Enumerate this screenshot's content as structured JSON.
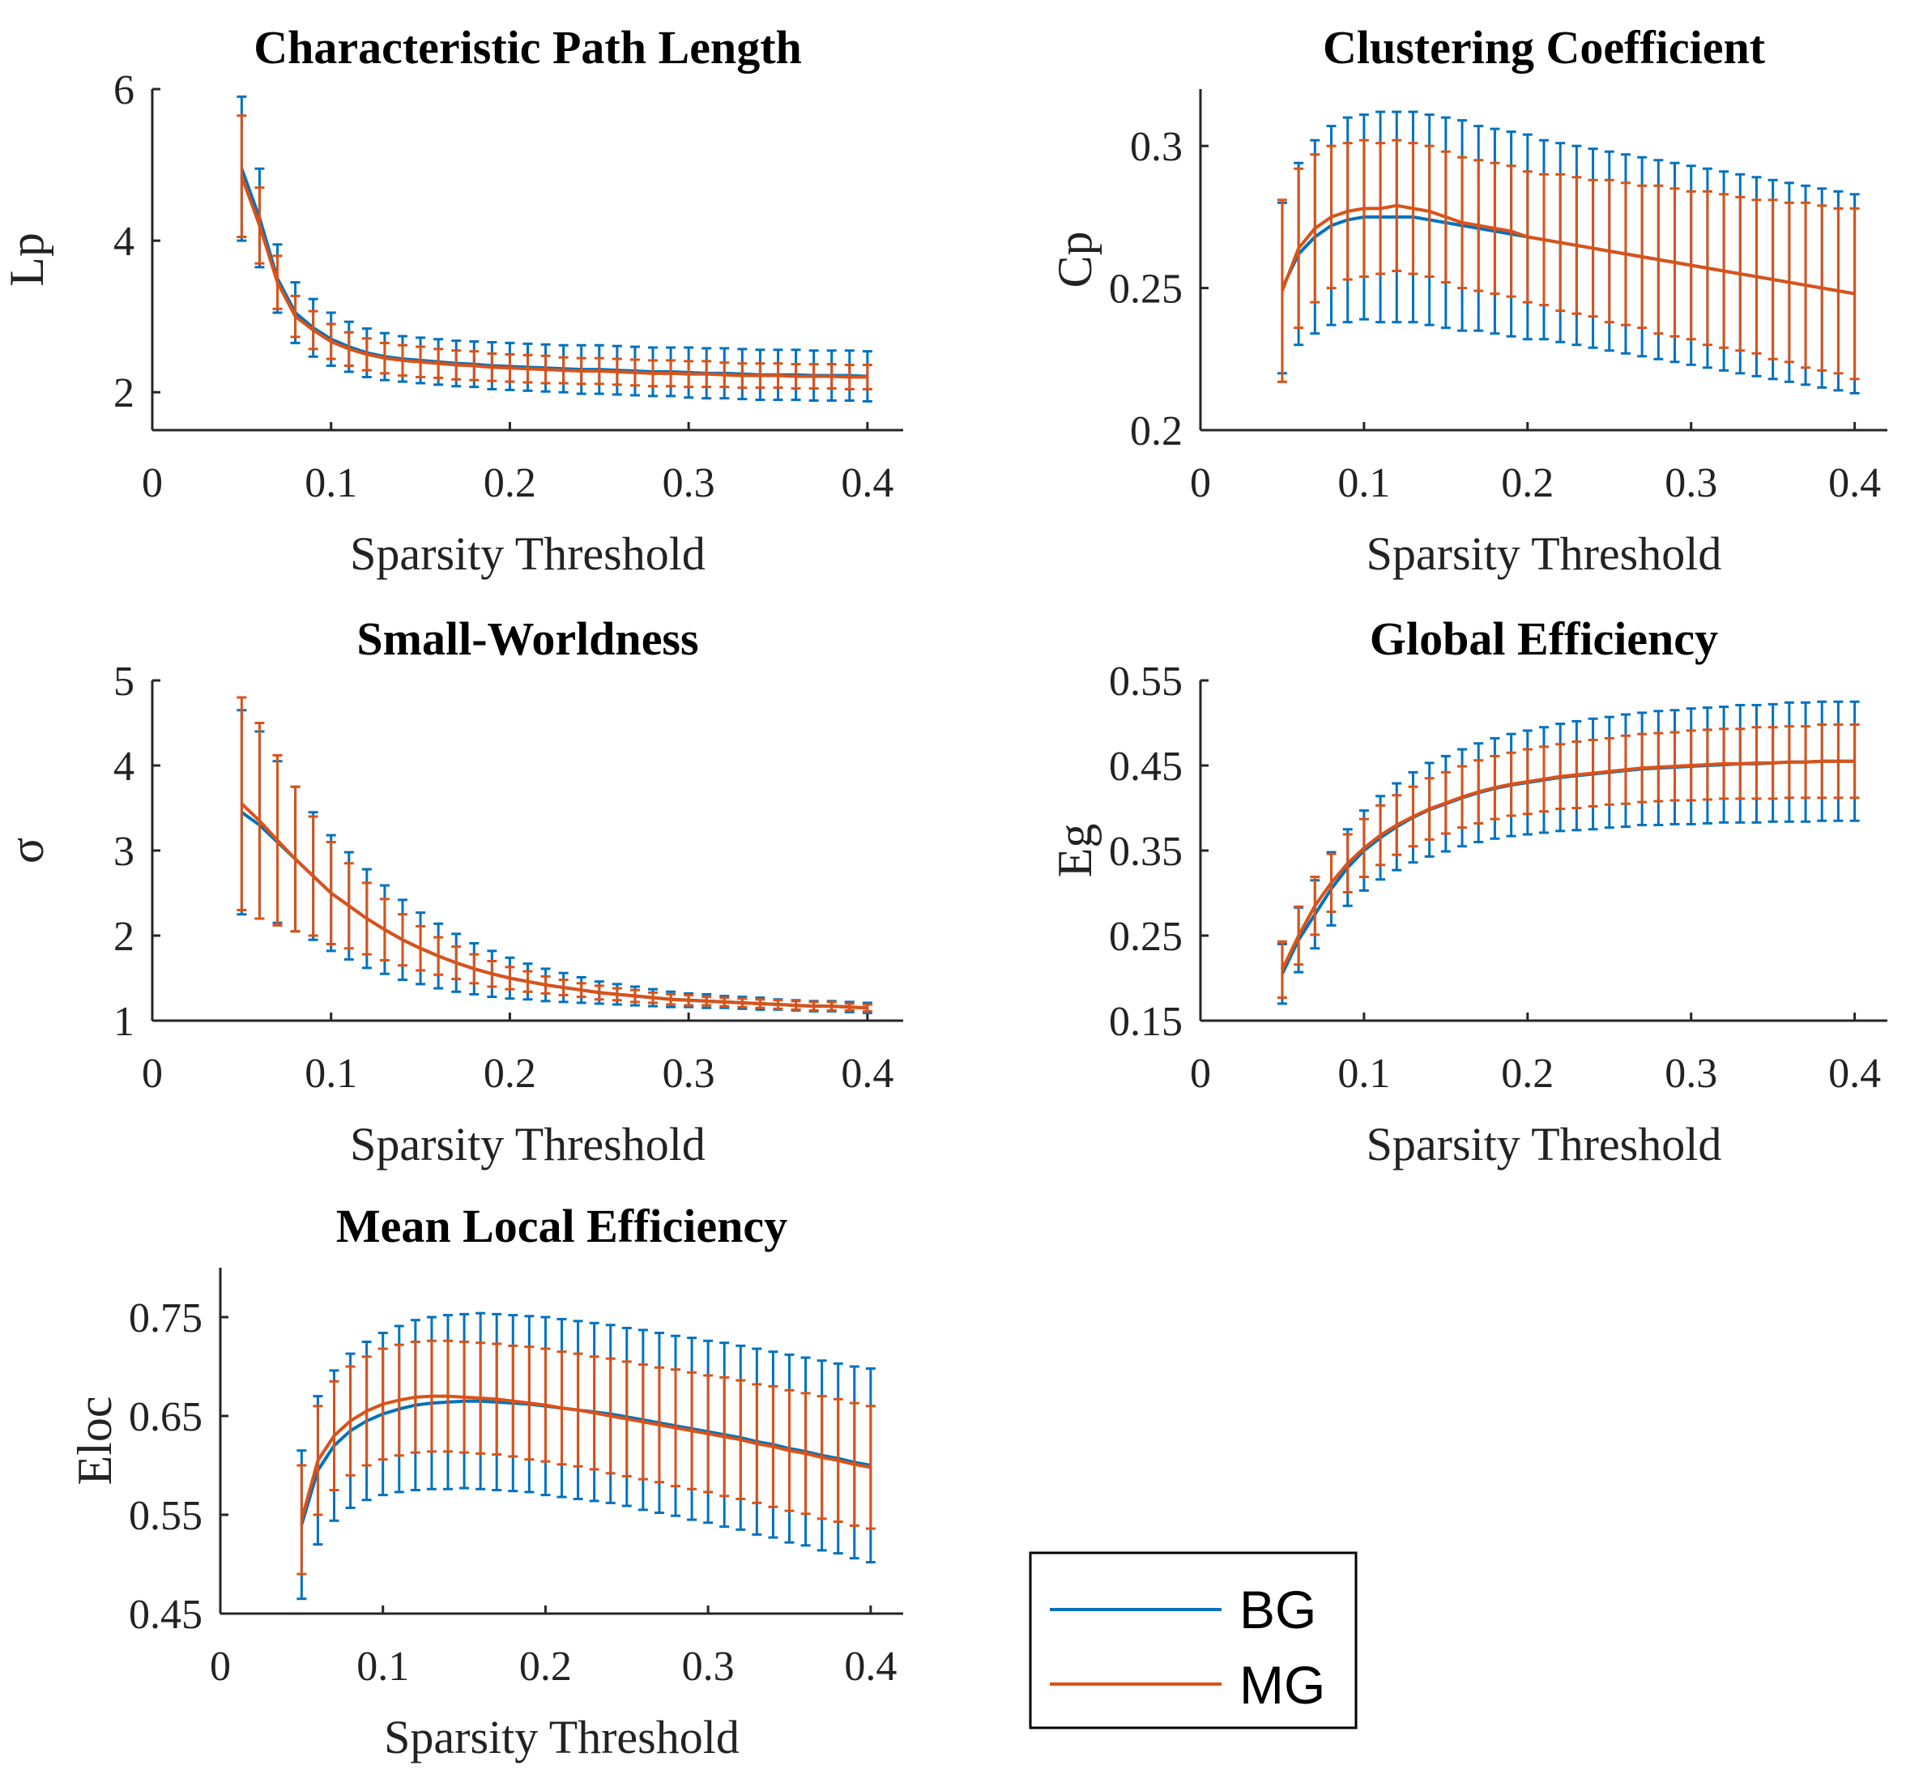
{
  "colors": {
    "BG": "#0072BD",
    "MG": "#D95319",
    "axis": "#262626"
  },
  "legend": {
    "placement": "bottom-right",
    "entries": [
      "BG",
      "MG"
    ]
  },
  "chart_data": [
    {
      "type": "line",
      "title": "Characteristic Path Length",
      "xlabel": "Sparsity Threshold",
      "ylabel": "Lp",
      "xlim": [
        0,
        0.42
      ],
      "ylim": [
        1.5,
        6
      ],
      "xticks": [
        0,
        0.1,
        0.2,
        0.3,
        0.4
      ],
      "xticklabels": [
        "0",
        "0.1",
        "0.2",
        "0.3",
        "0.4"
      ],
      "yticks": [
        2,
        4,
        6
      ],
      "yticklabels": [
        "2",
        "4",
        "6"
      ],
      "series": [
        {
          "name": "BG",
          "mean": [
            4.95,
            4.3,
            3.5,
            3.05,
            2.85,
            2.7,
            2.6,
            2.52,
            2.47,
            2.44,
            2.42,
            2.4,
            2.38,
            2.37,
            2.35,
            2.34,
            2.33,
            2.32,
            2.31,
            2.3,
            2.3,
            2.29,
            2.28,
            2.27,
            2.27,
            2.26,
            2.25,
            2.25,
            2.24,
            2.23,
            2.23,
            2.23,
            2.22,
            2.22,
            2.22,
            2.21
          ],
          "err": [
            0.95,
            0.65,
            0.45,
            0.4,
            0.38,
            0.35,
            0.33,
            0.32,
            0.31,
            0.3,
            0.3,
            0.3,
            0.3,
            0.3,
            0.31,
            0.31,
            0.31,
            0.31,
            0.31,
            0.32,
            0.32,
            0.32,
            0.32,
            0.32,
            0.32,
            0.33,
            0.33,
            0.33,
            0.33,
            0.33,
            0.33,
            0.33,
            0.33,
            0.33,
            0.33,
            0.33
          ]
        },
        {
          "name": "MG",
          "mean": [
            4.85,
            4.2,
            3.45,
            3.0,
            2.82,
            2.67,
            2.57,
            2.5,
            2.45,
            2.42,
            2.4,
            2.38,
            2.36,
            2.35,
            2.33,
            2.32,
            2.31,
            2.3,
            2.29,
            2.28,
            2.28,
            2.27,
            2.26,
            2.25,
            2.25,
            2.24,
            2.24,
            2.23,
            2.22,
            2.22,
            2.22,
            2.21,
            2.21,
            2.21,
            2.2,
            2.2
          ],
          "err": [
            0.8,
            0.5,
            0.35,
            0.27,
            0.25,
            0.23,
            0.22,
            0.21,
            0.2,
            0.2,
            0.2,
            0.19,
            0.19,
            0.19,
            0.18,
            0.18,
            0.18,
            0.18,
            0.17,
            0.17,
            0.17,
            0.17,
            0.17,
            0.17,
            0.17,
            0.17,
            0.17,
            0.16,
            0.16,
            0.16,
            0.16,
            0.16,
            0.16,
            0.16,
            0.16,
            0.16
          ]
        }
      ]
    },
    {
      "type": "line",
      "title": "Clustering Coefficient",
      "xlabel": "Sparsity Threshold",
      "ylabel": "Cp",
      "xlim": [
        0,
        0.42
      ],
      "ylim": [
        0.2,
        0.32
      ],
      "xticks": [
        0,
        0.1,
        0.2,
        0.3,
        0.4
      ],
      "xticklabels": [
        "0",
        "0.1",
        "0.2",
        "0.3",
        "0.4"
      ],
      "yticks": [
        0.2,
        0.25,
        0.3
      ],
      "yticklabels": [
        "0.2",
        "0.25",
        "0.3"
      ],
      "series": [
        {
          "name": "BG",
          "mean": [
            0.25,
            0.262,
            0.268,
            0.272,
            0.274,
            0.275,
            0.275,
            0.275,
            0.275,
            0.274,
            0.273,
            0.272,
            0.271,
            0.27,
            0.269,
            0.268,
            0.267,
            0.266,
            0.265,
            0.264,
            0.263,
            0.262,
            0.261,
            0.26,
            0.259,
            0.258,
            0.257,
            0.256,
            0.255,
            0.254,
            0.253,
            0.252,
            0.251,
            0.25,
            0.249,
            0.248
          ],
          "err": [
            0.03,
            0.032,
            0.034,
            0.035,
            0.036,
            0.036,
            0.037,
            0.037,
            0.037,
            0.037,
            0.037,
            0.037,
            0.036,
            0.036,
            0.036,
            0.036,
            0.035,
            0.035,
            0.035,
            0.035,
            0.035,
            0.035,
            0.035,
            0.035,
            0.035,
            0.035,
            0.035,
            0.035,
            0.035,
            0.035,
            0.035,
            0.035,
            0.035,
            0.035,
            0.035,
            0.035
          ]
        },
        {
          "name": "MG",
          "mean": [
            0.249,
            0.264,
            0.271,
            0.275,
            0.277,
            0.278,
            0.278,
            0.279,
            0.278,
            0.277,
            0.275,
            0.273,
            0.272,
            0.271,
            0.27,
            0.268,
            0.267,
            0.266,
            0.265,
            0.264,
            0.263,
            0.262,
            0.261,
            0.26,
            0.259,
            0.258,
            0.257,
            0.256,
            0.255,
            0.254,
            0.253,
            0.252,
            0.251,
            0.25,
            0.249,
            0.248
          ],
          "err": [
            0.032,
            0.028,
            0.026,
            0.025,
            0.024,
            0.024,
            0.023,
            0.023,
            0.023,
            0.023,
            0.023,
            0.023,
            0.023,
            0.023,
            0.023,
            0.023,
            0.023,
            0.024,
            0.024,
            0.024,
            0.025,
            0.025,
            0.025,
            0.026,
            0.026,
            0.026,
            0.027,
            0.027,
            0.027,
            0.027,
            0.028,
            0.028,
            0.029,
            0.029,
            0.029,
            0.03
          ]
        }
      ]
    },
    {
      "type": "line",
      "title": "Small-Worldness",
      "xlabel": "Sparsity Threshold",
      "ylabel": "σ",
      "xlim": [
        0,
        0.42
      ],
      "ylim": [
        1,
        5
      ],
      "xticks": [
        0,
        0.1,
        0.2,
        0.3,
        0.4
      ],
      "xticklabels": [
        "0",
        "0.1",
        "0.2",
        "0.3",
        "0.4"
      ],
      "yticks": [
        1,
        2,
        3,
        4,
        5
      ],
      "yticklabels": [
        "1",
        "2",
        "3",
        "4",
        "5"
      ],
      "series": [
        {
          "name": "BG",
          "mean": [
            3.45,
            3.3,
            3.1,
            2.9,
            2.7,
            2.5,
            2.35,
            2.2,
            2.07,
            1.95,
            1.85,
            1.76,
            1.68,
            1.61,
            1.55,
            1.5,
            1.46,
            1.42,
            1.39,
            1.36,
            1.33,
            1.31,
            1.29,
            1.27,
            1.25,
            1.24,
            1.23,
            1.22,
            1.21,
            1.2,
            1.19,
            1.18,
            1.17,
            1.17,
            1.16,
            1.15
          ],
          "err": [
            1.2,
            1.1,
            0.95,
            0.85,
            0.75,
            0.68,
            0.63,
            0.58,
            0.52,
            0.47,
            0.42,
            0.38,
            0.34,
            0.3,
            0.27,
            0.24,
            0.21,
            0.19,
            0.17,
            0.15,
            0.13,
            0.12,
            0.11,
            0.1,
            0.09,
            0.08,
            0.08,
            0.07,
            0.07,
            0.07,
            0.06,
            0.06,
            0.06,
            0.06,
            0.06,
            0.06
          ]
        },
        {
          "name": "MG",
          "mean": [
            3.55,
            3.35,
            3.12,
            2.9,
            2.7,
            2.5,
            2.35,
            2.2,
            2.07,
            1.95,
            1.85,
            1.76,
            1.68,
            1.61,
            1.55,
            1.5,
            1.46,
            1.42,
            1.39,
            1.36,
            1.33,
            1.31,
            1.29,
            1.27,
            1.25,
            1.24,
            1.23,
            1.22,
            1.21,
            1.2,
            1.19,
            1.18,
            1.17,
            1.17,
            1.16,
            1.15
          ],
          "err": [
            1.25,
            1.15,
            1.0,
            0.85,
            0.7,
            0.6,
            0.5,
            0.42,
            0.36,
            0.3,
            0.26,
            0.22,
            0.19,
            0.17,
            0.15,
            0.13,
            0.12,
            0.1,
            0.09,
            0.08,
            0.08,
            0.07,
            0.07,
            0.06,
            0.06,
            0.06,
            0.05,
            0.05,
            0.05,
            0.05,
            0.05,
            0.05,
            0.05,
            0.05,
            0.04,
            0.04
          ]
        }
      ]
    },
    {
      "type": "line",
      "title": "Global Efficiency",
      "xlabel": "Sparsity Threshold",
      "ylabel": "Eg",
      "xlim": [
        0,
        0.42
      ],
      "ylim": [
        0.15,
        0.55
      ],
      "xticks": [
        0,
        0.1,
        0.2,
        0.3,
        0.4
      ],
      "xticklabels": [
        "0",
        "0.1",
        "0.2",
        "0.3",
        "0.4"
      ],
      "yticks": [
        0.15,
        0.25,
        0.35,
        0.45,
        0.55
      ],
      "yticklabels": [
        "0.15",
        "0.25",
        "0.35",
        "0.45",
        "0.55"
      ],
      "series": [
        {
          "name": "BG",
          "mean": [
            0.205,
            0.245,
            0.275,
            0.305,
            0.33,
            0.35,
            0.365,
            0.378,
            0.389,
            0.398,
            0.405,
            0.412,
            0.418,
            0.423,
            0.427,
            0.43,
            0.433,
            0.436,
            0.438,
            0.44,
            0.442,
            0.444,
            0.446,
            0.447,
            0.448,
            0.449,
            0.45,
            0.451,
            0.452,
            0.452,
            0.453,
            0.454,
            0.454,
            0.455,
            0.455,
            0.455
          ],
          "err": [
            0.035,
            0.038,
            0.04,
            0.043,
            0.045,
            0.047,
            0.049,
            0.051,
            0.053,
            0.055,
            0.056,
            0.057,
            0.058,
            0.059,
            0.06,
            0.061,
            0.062,
            0.063,
            0.064,
            0.065,
            0.065,
            0.066,
            0.066,
            0.067,
            0.067,
            0.068,
            0.068,
            0.068,
            0.069,
            0.069,
            0.069,
            0.07,
            0.07,
            0.07,
            0.07,
            0.07
          ]
        },
        {
          "name": "MG",
          "mean": [
            0.21,
            0.25,
            0.285,
            0.312,
            0.335,
            0.353,
            0.368,
            0.38,
            0.39,
            0.399,
            0.406,
            0.413,
            0.419,
            0.424,
            0.428,
            0.431,
            0.434,
            0.437,
            0.439,
            0.441,
            0.443,
            0.445,
            0.447,
            0.448,
            0.449,
            0.45,
            0.451,
            0.452,
            0.452,
            0.453,
            0.453,
            0.454,
            0.454,
            0.455,
            0.455,
            0.455
          ],
          "err": [
            0.033,
            0.034,
            0.034,
            0.034,
            0.034,
            0.034,
            0.035,
            0.035,
            0.035,
            0.036,
            0.036,
            0.036,
            0.037,
            0.037,
            0.037,
            0.038,
            0.038,
            0.038,
            0.039,
            0.039,
            0.039,
            0.04,
            0.04,
            0.04,
            0.04,
            0.041,
            0.041,
            0.041,
            0.041,
            0.042,
            0.042,
            0.042,
            0.042,
            0.043,
            0.043,
            0.043
          ]
        }
      ]
    },
    {
      "type": "line",
      "title": "Mean Local Efficiency",
      "xlabel": "Sparsity Threshold",
      "ylabel": "Eloc",
      "xlim": [
        0,
        0.42
      ],
      "ylim": [
        0.45,
        0.8
      ],
      "xticks": [
        0,
        0.1,
        0.2,
        0.3,
        0.4
      ],
      "xticklabels": [
        "0",
        "0.1",
        "0.2",
        "0.3",
        "0.4"
      ],
      "yticks": [
        0.45,
        0.55,
        0.65,
        0.75
      ],
      "yticklabels": [
        "0.45",
        "0.55",
        "0.65",
        "0.75"
      ],
      "series": [
        {
          "name": "BG",
          "mean": [
            0.54,
            0.595,
            0.62,
            0.635,
            0.645,
            0.652,
            0.657,
            0.661,
            0.663,
            0.664,
            0.665,
            0.665,
            0.664,
            0.663,
            0.662,
            0.66,
            0.658,
            0.656,
            0.654,
            0.652,
            0.649,
            0.646,
            0.643,
            0.64,
            0.637,
            0.634,
            0.631,
            0.628,
            0.624,
            0.621,
            0.617,
            0.614,
            0.61,
            0.607,
            0.603,
            0.6
          ],
          "err": [
            0.075,
            0.075,
            0.076,
            0.078,
            0.08,
            0.082,
            0.084,
            0.086,
            0.087,
            0.088,
            0.088,
            0.089,
            0.089,
            0.089,
            0.089,
            0.09,
            0.09,
            0.09,
            0.09,
            0.09,
            0.09,
            0.091,
            0.091,
            0.091,
            0.092,
            0.092,
            0.093,
            0.093,
            0.094,
            0.094,
            0.095,
            0.095,
            0.096,
            0.096,
            0.097,
            0.098
          ]
        },
        {
          "name": "MG",
          "mean": [
            0.545,
            0.605,
            0.63,
            0.645,
            0.655,
            0.662,
            0.666,
            0.669,
            0.67,
            0.67,
            0.669,
            0.668,
            0.667,
            0.665,
            0.663,
            0.661,
            0.658,
            0.656,
            0.653,
            0.65,
            0.647,
            0.644,
            0.641,
            0.638,
            0.635,
            0.632,
            0.629,
            0.626,
            0.622,
            0.619,
            0.615,
            0.612,
            0.608,
            0.605,
            0.601,
            0.598
          ],
          "err": [
            0.055,
            0.055,
            0.055,
            0.055,
            0.055,
            0.056,
            0.056,
            0.056,
            0.056,
            0.056,
            0.056,
            0.056,
            0.056,
            0.056,
            0.057,
            0.057,
            0.057,
            0.057,
            0.057,
            0.058,
            0.058,
            0.058,
            0.058,
            0.059,
            0.059,
            0.059,
            0.06,
            0.06,
            0.06,
            0.061,
            0.061,
            0.061,
            0.062,
            0.062,
            0.062,
            0.062
          ]
        }
      ]
    }
  ]
}
